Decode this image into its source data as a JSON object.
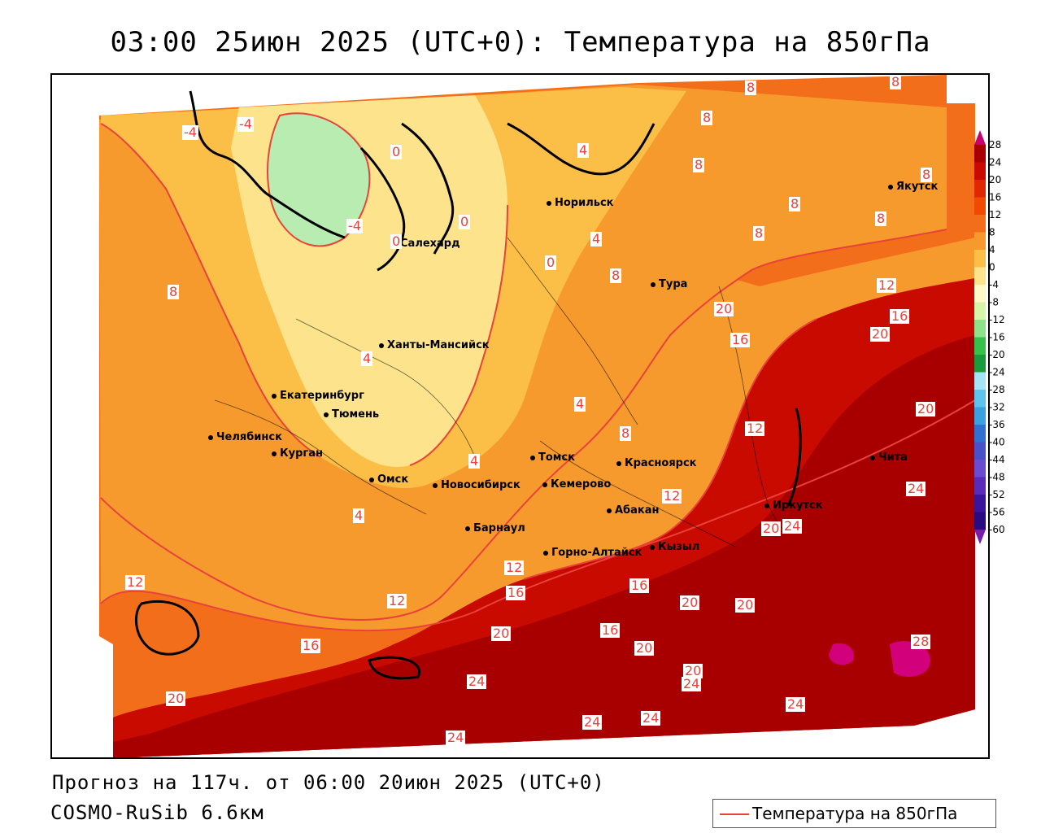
{
  "title": "03:00 25июн 2025 (UTC+0): Температура на 850гПа",
  "footer": {
    "line1": "Прогноз на 117ч. от 06:00 20июн 2025 (UTC+0)",
    "line2": "COSMO-RuSib 6.6км"
  },
  "legend": {
    "label": "Температура на 850гПа",
    "line_color": "#e8423b"
  },
  "colorbar": {
    "ticks": [
      "28",
      "24",
      "20",
      "16",
      "12",
      "8",
      "4",
      "0",
      "-4",
      "-8",
      "-12",
      "-16",
      "-20",
      "-24",
      "-28",
      "-32",
      "-36",
      "-40",
      "-44",
      "-48",
      "-52",
      "-56",
      "-60"
    ],
    "colors": [
      "#c8006e",
      "#a80000",
      "#c80a00",
      "#e02800",
      "#f04a00",
      "#f36e1a",
      "#f79a2e",
      "#fbbf48",
      "#fde48c",
      "#fefac8",
      "#d6f5a8",
      "#8ee28a",
      "#35c24a",
      "#1a9a3a",
      "#a4e4f4",
      "#5fc4ec",
      "#3aa0e0",
      "#3070d0",
      "#4a50c8",
      "#6a4cd0",
      "#5a2ab8",
      "#3a149a",
      "#2a0a80",
      "#7a1aa8"
    ]
  },
  "cities": [
    {
      "name": "Норильск"
    },
    {
      "name": "Салехард"
    },
    {
      "name": "Ханты-Мансийск"
    },
    {
      "name": "Тура"
    },
    {
      "name": "Якутск"
    },
    {
      "name": "Екатеринбург"
    },
    {
      "name": "Тюмень"
    },
    {
      "name": "Челябинск"
    },
    {
      "name": "Курган"
    },
    {
      "name": "Омск"
    },
    {
      "name": "Томск"
    },
    {
      "name": "Красноярск"
    },
    {
      "name": "Новосибирск"
    },
    {
      "name": "Кемерово"
    },
    {
      "name": "Барнаул"
    },
    {
      "name": "Абакан"
    },
    {
      "name": "Иркутск"
    },
    {
      "name": "Чита"
    },
    {
      "name": "Горно-Алтайск"
    },
    {
      "name": "Кызыл"
    }
  ],
  "contour_labels": [
    "-4",
    "-4",
    "-4",
    "0",
    "0",
    "0",
    "0",
    "4",
    "4",
    "4",
    "4",
    "4",
    "4",
    "8",
    "8",
    "8",
    "8",
    "8",
    "8",
    "8",
    "8",
    "8",
    "8",
    "8",
    "12",
    "12",
    "12",
    "12",
    "12",
    "12",
    "16",
    "16",
    "16",
    "16",
    "16",
    "16",
    "20",
    "20",
    "20",
    "20",
    "20",
    "20",
    "20",
    "20",
    "20",
    "20",
    "24",
    "24",
    "24",
    "24",
    "24",
    "24",
    "24",
    "24",
    "28"
  ]
}
